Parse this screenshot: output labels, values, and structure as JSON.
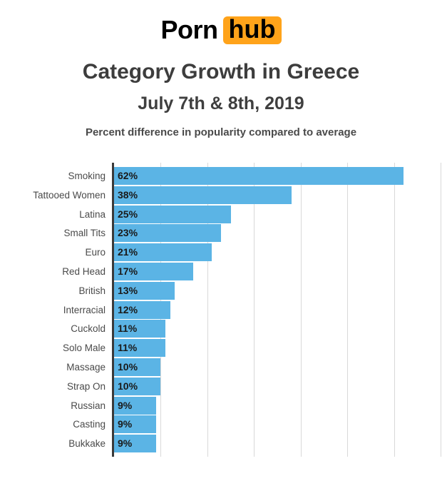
{
  "logo": {
    "word1": "Porn",
    "word2": "hub",
    "accent_color": "#ffa31a"
  },
  "header": {
    "title": "Category Growth in Greece",
    "subtitle": "July 7th & 8th, 2019",
    "note": "Percent difference in popularity compared to average"
  },
  "chart_data": {
    "type": "bar",
    "orientation": "horizontal",
    "title": "Category Growth in Greece",
    "subtitle": "July 7th & 8th, 2019",
    "caption": "Percent difference in popularity compared to average",
    "categories": [
      "Smoking",
      "Tattooed Women",
      "Latina",
      "Small Tits",
      "Euro",
      "Red Head",
      "British",
      "Interracial",
      "Cuckold",
      "Solo Male",
      "Massage",
      "Strap On",
      "Russian",
      "Casting",
      "Bukkake"
    ],
    "values": [
      62,
      38,
      25,
      23,
      21,
      17,
      13,
      12,
      11,
      11,
      10,
      10,
      9,
      9,
      9
    ],
    "value_labels": [
      "62%",
      "38%",
      "25%",
      "23%",
      "21%",
      "17%",
      "13%",
      "12%",
      "11%",
      "11%",
      "10%",
      "10%",
      "9%",
      "9%",
      "9%"
    ],
    "unit": "%",
    "xlim": [
      0,
      70
    ],
    "gridline_interval": 10,
    "grid": true,
    "legend": false,
    "bar_color": "#5bb4e5",
    "axis_color": "#3a3a3a",
    "grid_color": "#d9d9d9",
    "label_color": "#4a4a4a",
    "value_color": "#1a1a1a"
  }
}
